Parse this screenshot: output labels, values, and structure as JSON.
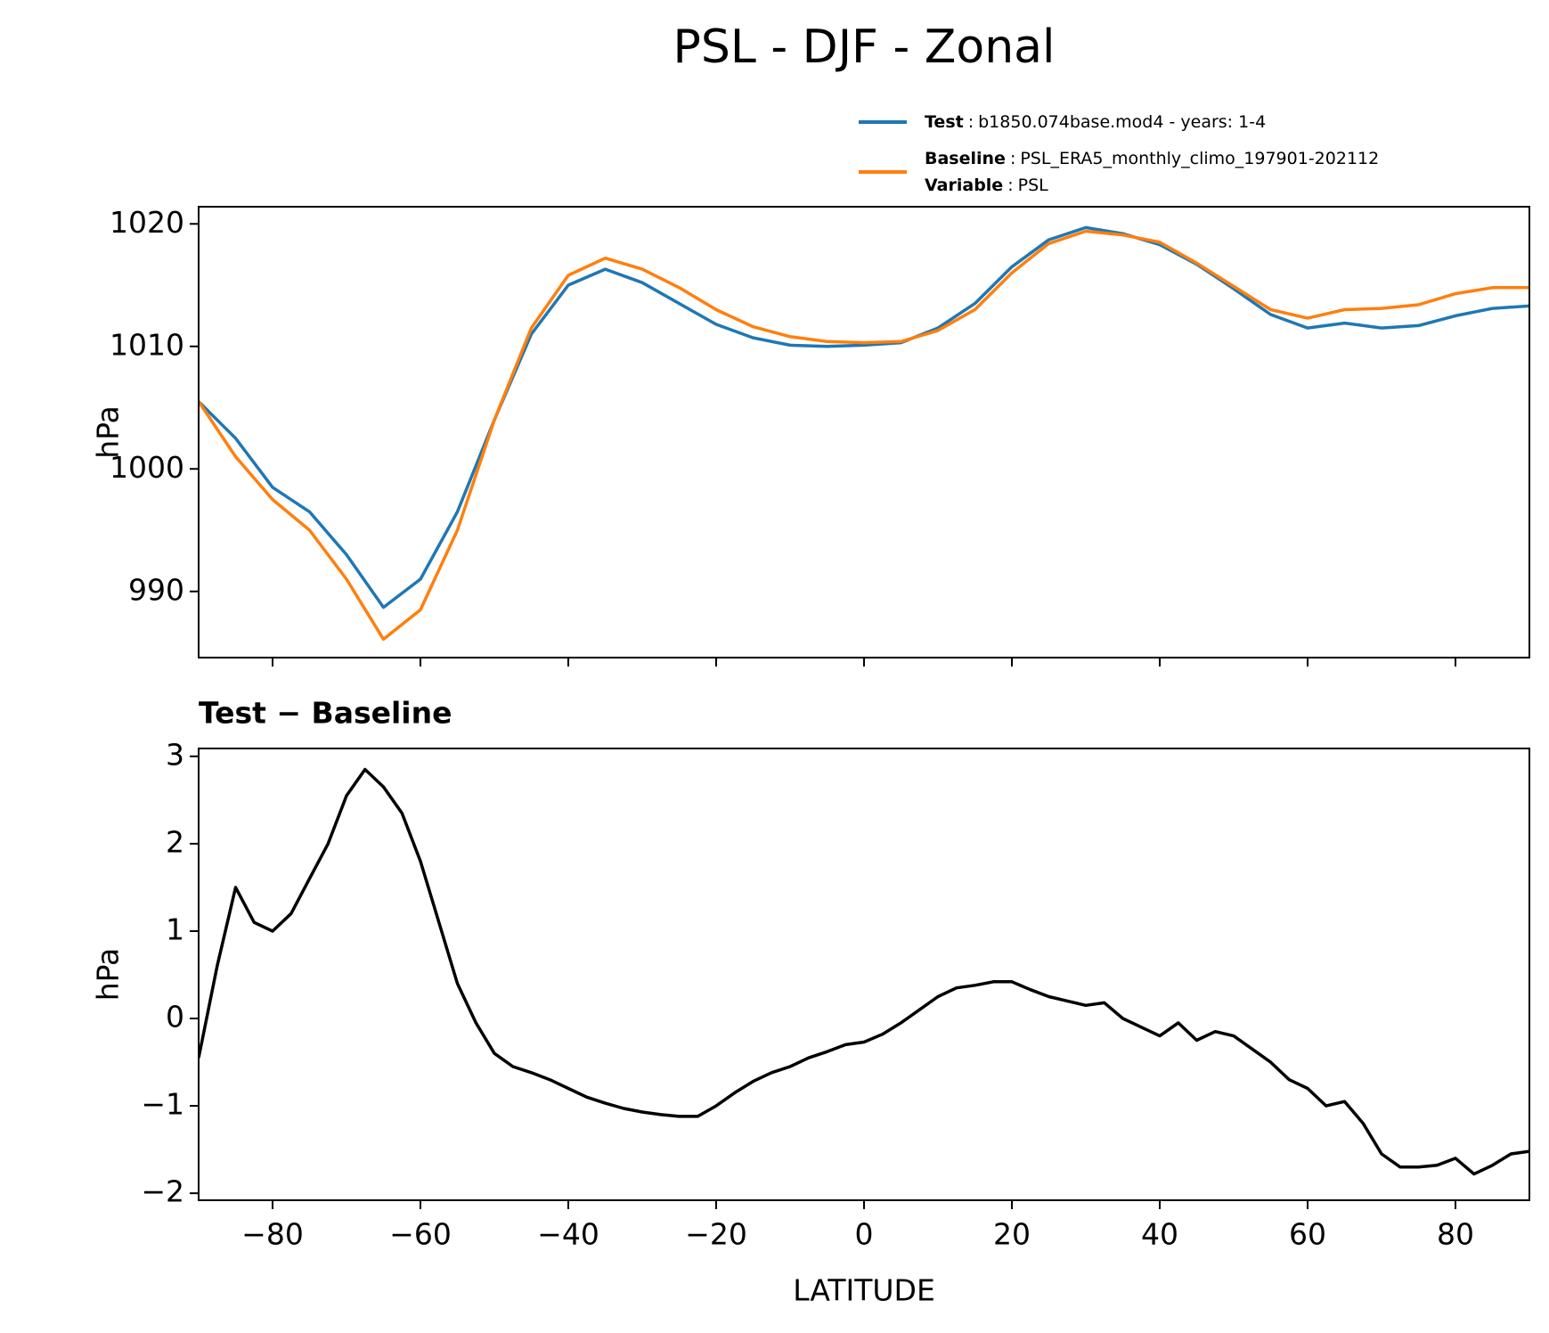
{
  "title": "PSL - DJF - Zonal",
  "legend_separator": ":",
  "chart_data": [
    {
      "type": "line",
      "ylabel": "hPa",
      "x": [
        -90,
        -85,
        -80,
        -75,
        -70,
        -65,
        -60,
        -55,
        -50,
        -45,
        -40,
        -35,
        -30,
        -25,
        -20,
        -15,
        -10,
        -5,
        0,
        5,
        10,
        15,
        20,
        25,
        30,
        35,
        40,
        45,
        50,
        55,
        60,
        65,
        70,
        75,
        80,
        85,
        90
      ],
      "series": [
        {
          "name": "Test",
          "legend_text": "b1850.074base.mod4 - years: 1-4",
          "color": "#1f77b4",
          "values": [
            1005.5,
            1002.5,
            998.5,
            996.5,
            993,
            988.7,
            991,
            996.5,
            1004,
            1011,
            1015,
            1016.3,
            1015.2,
            1013.5,
            1011.8,
            1010.7,
            1010.1,
            1010,
            1010.1,
            1010.3,
            1011.5,
            1013.5,
            1016.5,
            1018.7,
            1019.7,
            1019.2,
            1018.3,
            1016.7,
            1014.7,
            1012.6,
            1011.5,
            1011.9,
            1011.5,
            1011.7,
            1012.5,
            1013.1,
            1013.3
          ]
        },
        {
          "name": "Baseline",
          "legend_text": "PSL_ERA5_monthly_climo_197901-202112",
          "color": "#ff7f0e",
          "values": [
            1005.5,
            1001,
            997.5,
            995,
            991,
            986.1,
            988.5,
            995,
            1004,
            1011.5,
            1015.8,
            1017.2,
            1016.3,
            1014.8,
            1013,
            1011.6,
            1010.8,
            1010.4,
            1010.3,
            1010.4,
            1011.3,
            1013,
            1016,
            1018.4,
            1019.4,
            1019.1,
            1018.5,
            1016.8,
            1014.9,
            1013,
            1012.3,
            1013,
            1013.1,
            1013.4,
            1014.3,
            1014.8,
            1014.8
          ]
        }
      ],
      "legend_extra": {
        "name": "Variable",
        "text": "PSL"
      },
      "xlim": [
        -90,
        90
      ],
      "xticks": [
        -80,
        -60,
        -40,
        -20,
        0,
        20,
        40,
        60,
        80
      ],
      "ylim": [
        984.6,
        1021.4
      ],
      "yticks": [
        990,
        1000,
        1010,
        1020
      ]
    },
    {
      "type": "line",
      "title": "Test − Baseline",
      "xlabel": "LATITUDE",
      "ylabel": "hPa",
      "x": [
        -90,
        -87.5,
        -85,
        -82.5,
        -80,
        -77.5,
        -75,
        -72.5,
        -70,
        -67.5,
        -65,
        -62.5,
        -60,
        -57.5,
        -55,
        -52.5,
        -50,
        -47.5,
        -45,
        -42.5,
        -40,
        -37.5,
        -35,
        -32.5,
        -30,
        -27.5,
        -25,
        -22.5,
        -20,
        -17.5,
        -15,
        -12.5,
        -10,
        -7.5,
        -5,
        -2.5,
        0,
        2.5,
        5,
        7.5,
        10,
        12.5,
        15,
        17.5,
        20,
        22.5,
        25,
        27.5,
        30,
        32.5,
        35,
        37.5,
        40,
        42.5,
        45,
        47.5,
        50,
        52.5,
        55,
        57.5,
        60,
        62.5,
        65,
        67.5,
        70,
        72.5,
        75,
        77.5,
        80,
        82.5,
        85,
        87.5,
        90
      ],
      "series": [
        {
          "color": "#000000",
          "values": [
            -0.45,
            0.6,
            1.5,
            1.1,
            1.0,
            1.2,
            1.6,
            2.0,
            2.55,
            2.85,
            2.65,
            2.35,
            1.8,
            1.1,
            0.4,
            -0.05,
            -0.4,
            -0.55,
            -0.62,
            -0.7,
            -0.8,
            -0.9,
            -0.97,
            -1.03,
            -1.07,
            -1.1,
            -1.12,
            -1.12,
            -1.0,
            -0.85,
            -0.72,
            -0.62,
            -0.55,
            -0.45,
            -0.38,
            -0.3,
            -0.27,
            -0.18,
            -0.05,
            0.1,
            0.25,
            0.35,
            0.38,
            0.42,
            0.42,
            0.33,
            0.25,
            0.2,
            0.15,
            0.18,
            0.0,
            -0.1,
            -0.2,
            -0.05,
            -0.25,
            -0.15,
            -0.2,
            -0.35,
            -0.5,
            -0.7,
            -0.8,
            -1.0,
            -0.95,
            -1.2,
            -1.55,
            -1.7,
            -1.7,
            -1.68,
            -1.6,
            -1.78,
            -1.68,
            -1.55,
            -1.52
          ]
        }
      ],
      "xlim": [
        -90,
        90
      ],
      "xticks": [
        {
          "value": -80,
          "label": "−80"
        },
        {
          "value": -60,
          "label": "−60"
        },
        {
          "value": -40,
          "label": "−40"
        },
        {
          "value": -20,
          "label": "−20"
        },
        0,
        20,
        40,
        60,
        80
      ],
      "ylim": [
        -2.08,
        3.09
      ],
      "yticks": [
        {
          "value": -2,
          "label": "−2"
        },
        {
          "value": -1,
          "label": "−1"
        },
        0,
        1,
        2,
        3
      ]
    }
  ]
}
